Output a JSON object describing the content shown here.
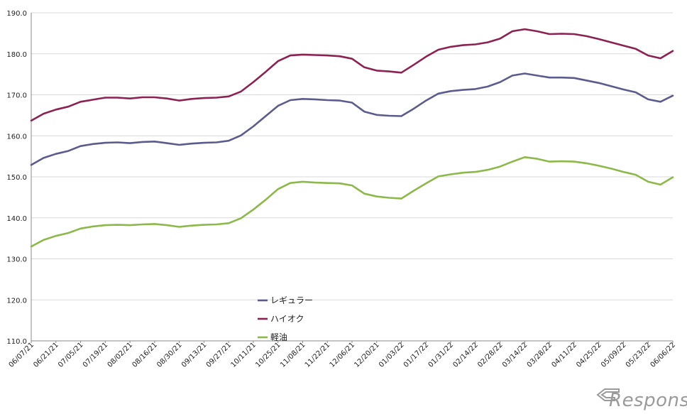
{
  "chart_data": {
    "type": "line",
    "title": "",
    "xlabel": "",
    "ylabel": "",
    "ylim": [
      110,
      190
    ],
    "yticks": [
      "110.0",
      "120.0",
      "130.0",
      "140.0",
      "150.0",
      "160.0",
      "170.0",
      "180.0",
      "190.0"
    ],
    "grid": true,
    "legend_position": "center",
    "tick_labels": [
      "06/07/21",
      "06/21/21",
      "07/05/21",
      "07/19/21",
      "08/02/21",
      "08/16/21",
      "08/30/21",
      "09/13/21",
      "09/27/21",
      "10/11/21",
      "10/25/21",
      "11/08/21",
      "11/22/21",
      "12/06/21",
      "12/20/21",
      "01/03/22",
      "01/17/22",
      "01/31/22",
      "02/14/22",
      "02/28/22",
      "03/14/22",
      "03/28/22",
      "04/11/22",
      "04/25/22",
      "05/09/22",
      "05/23/22",
      "06/06/22"
    ],
    "series": [
      {
        "name": "レギュラー",
        "color": "#5b5b8e",
        "values": [
          152.9,
          154.6,
          155.6,
          156.3,
          157.5,
          158.0,
          158.3,
          158.4,
          158.2,
          158.5,
          158.6,
          158.2,
          157.8,
          158.1,
          158.3,
          158.4,
          158.8,
          160.1,
          162.3,
          164.8,
          167.3,
          168.7,
          169.0,
          168.9,
          168.7,
          168.6,
          168.1,
          165.9,
          165.1,
          164.9,
          164.8,
          166.6,
          168.6,
          170.3,
          170.9,
          171.2,
          171.4,
          172.0,
          173.1,
          174.7,
          175.2,
          174.7,
          174.2,
          174.2,
          174.1,
          173.5,
          172.9,
          172.1,
          171.3,
          170.6,
          168.9,
          168.3,
          169.8
        ]
      },
      {
        "name": "ハイオク",
        "color": "#8b2252",
        "values": [
          163.7,
          165.4,
          166.4,
          167.1,
          168.3,
          168.8,
          169.3,
          169.3,
          169.1,
          169.4,
          169.4,
          169.1,
          168.6,
          169.0,
          169.2,
          169.3,
          169.6,
          170.8,
          173.1,
          175.6,
          178.2,
          179.6,
          179.8,
          179.7,
          179.6,
          179.4,
          178.8,
          176.7,
          175.9,
          175.7,
          175.4,
          177.3,
          179.3,
          181.0,
          181.7,
          182.1,
          182.3,
          182.8,
          183.7,
          185.5,
          186.0,
          185.5,
          184.8,
          184.9,
          184.8,
          184.3,
          183.6,
          182.8,
          182.0,
          181.2,
          179.6,
          178.9,
          180.7
        ]
      },
      {
        "name": "軽油",
        "color": "#8db84a",
        "values": [
          133.0,
          134.6,
          135.6,
          136.3,
          137.4,
          137.9,
          138.2,
          138.3,
          138.2,
          138.4,
          138.5,
          138.2,
          137.8,
          138.1,
          138.3,
          138.4,
          138.7,
          139.9,
          142.0,
          144.4,
          147.0,
          148.5,
          148.8,
          148.6,
          148.5,
          148.4,
          147.9,
          145.9,
          145.2,
          144.9,
          144.7,
          146.6,
          148.4,
          150.1,
          150.6,
          151.0,
          151.2,
          151.7,
          152.5,
          153.7,
          154.8,
          154.4,
          153.7,
          153.8,
          153.7,
          153.3,
          152.7,
          152.0,
          151.2,
          150.5,
          148.8,
          148.1,
          149.9
        ]
      }
    ]
  },
  "watermark": {
    "text": "Response."
  }
}
